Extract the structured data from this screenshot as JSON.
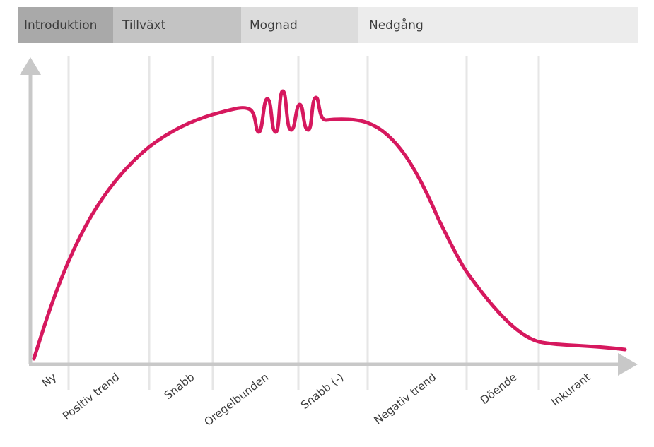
{
  "phases": [
    {
      "label": "Introduktion",
      "color": "#a9a9a9"
    },
    {
      "label": "Tillväxt",
      "color": "#c3c3c3"
    },
    {
      "label": "Mognad",
      "color": "#dcdcdc"
    },
    {
      "label": "Nedgång",
      "color": "#ececec"
    }
  ],
  "stages": [
    "Ny",
    "Positiv trend",
    "Snabb",
    "Oregelbunden",
    "Snabb (-)",
    "Negativ trend",
    "Döende",
    "Inkurant"
  ],
  "colors": {
    "curve": "#d6185e",
    "axis": "#c8c8c8",
    "gridline": "#e6e6e6"
  }
}
